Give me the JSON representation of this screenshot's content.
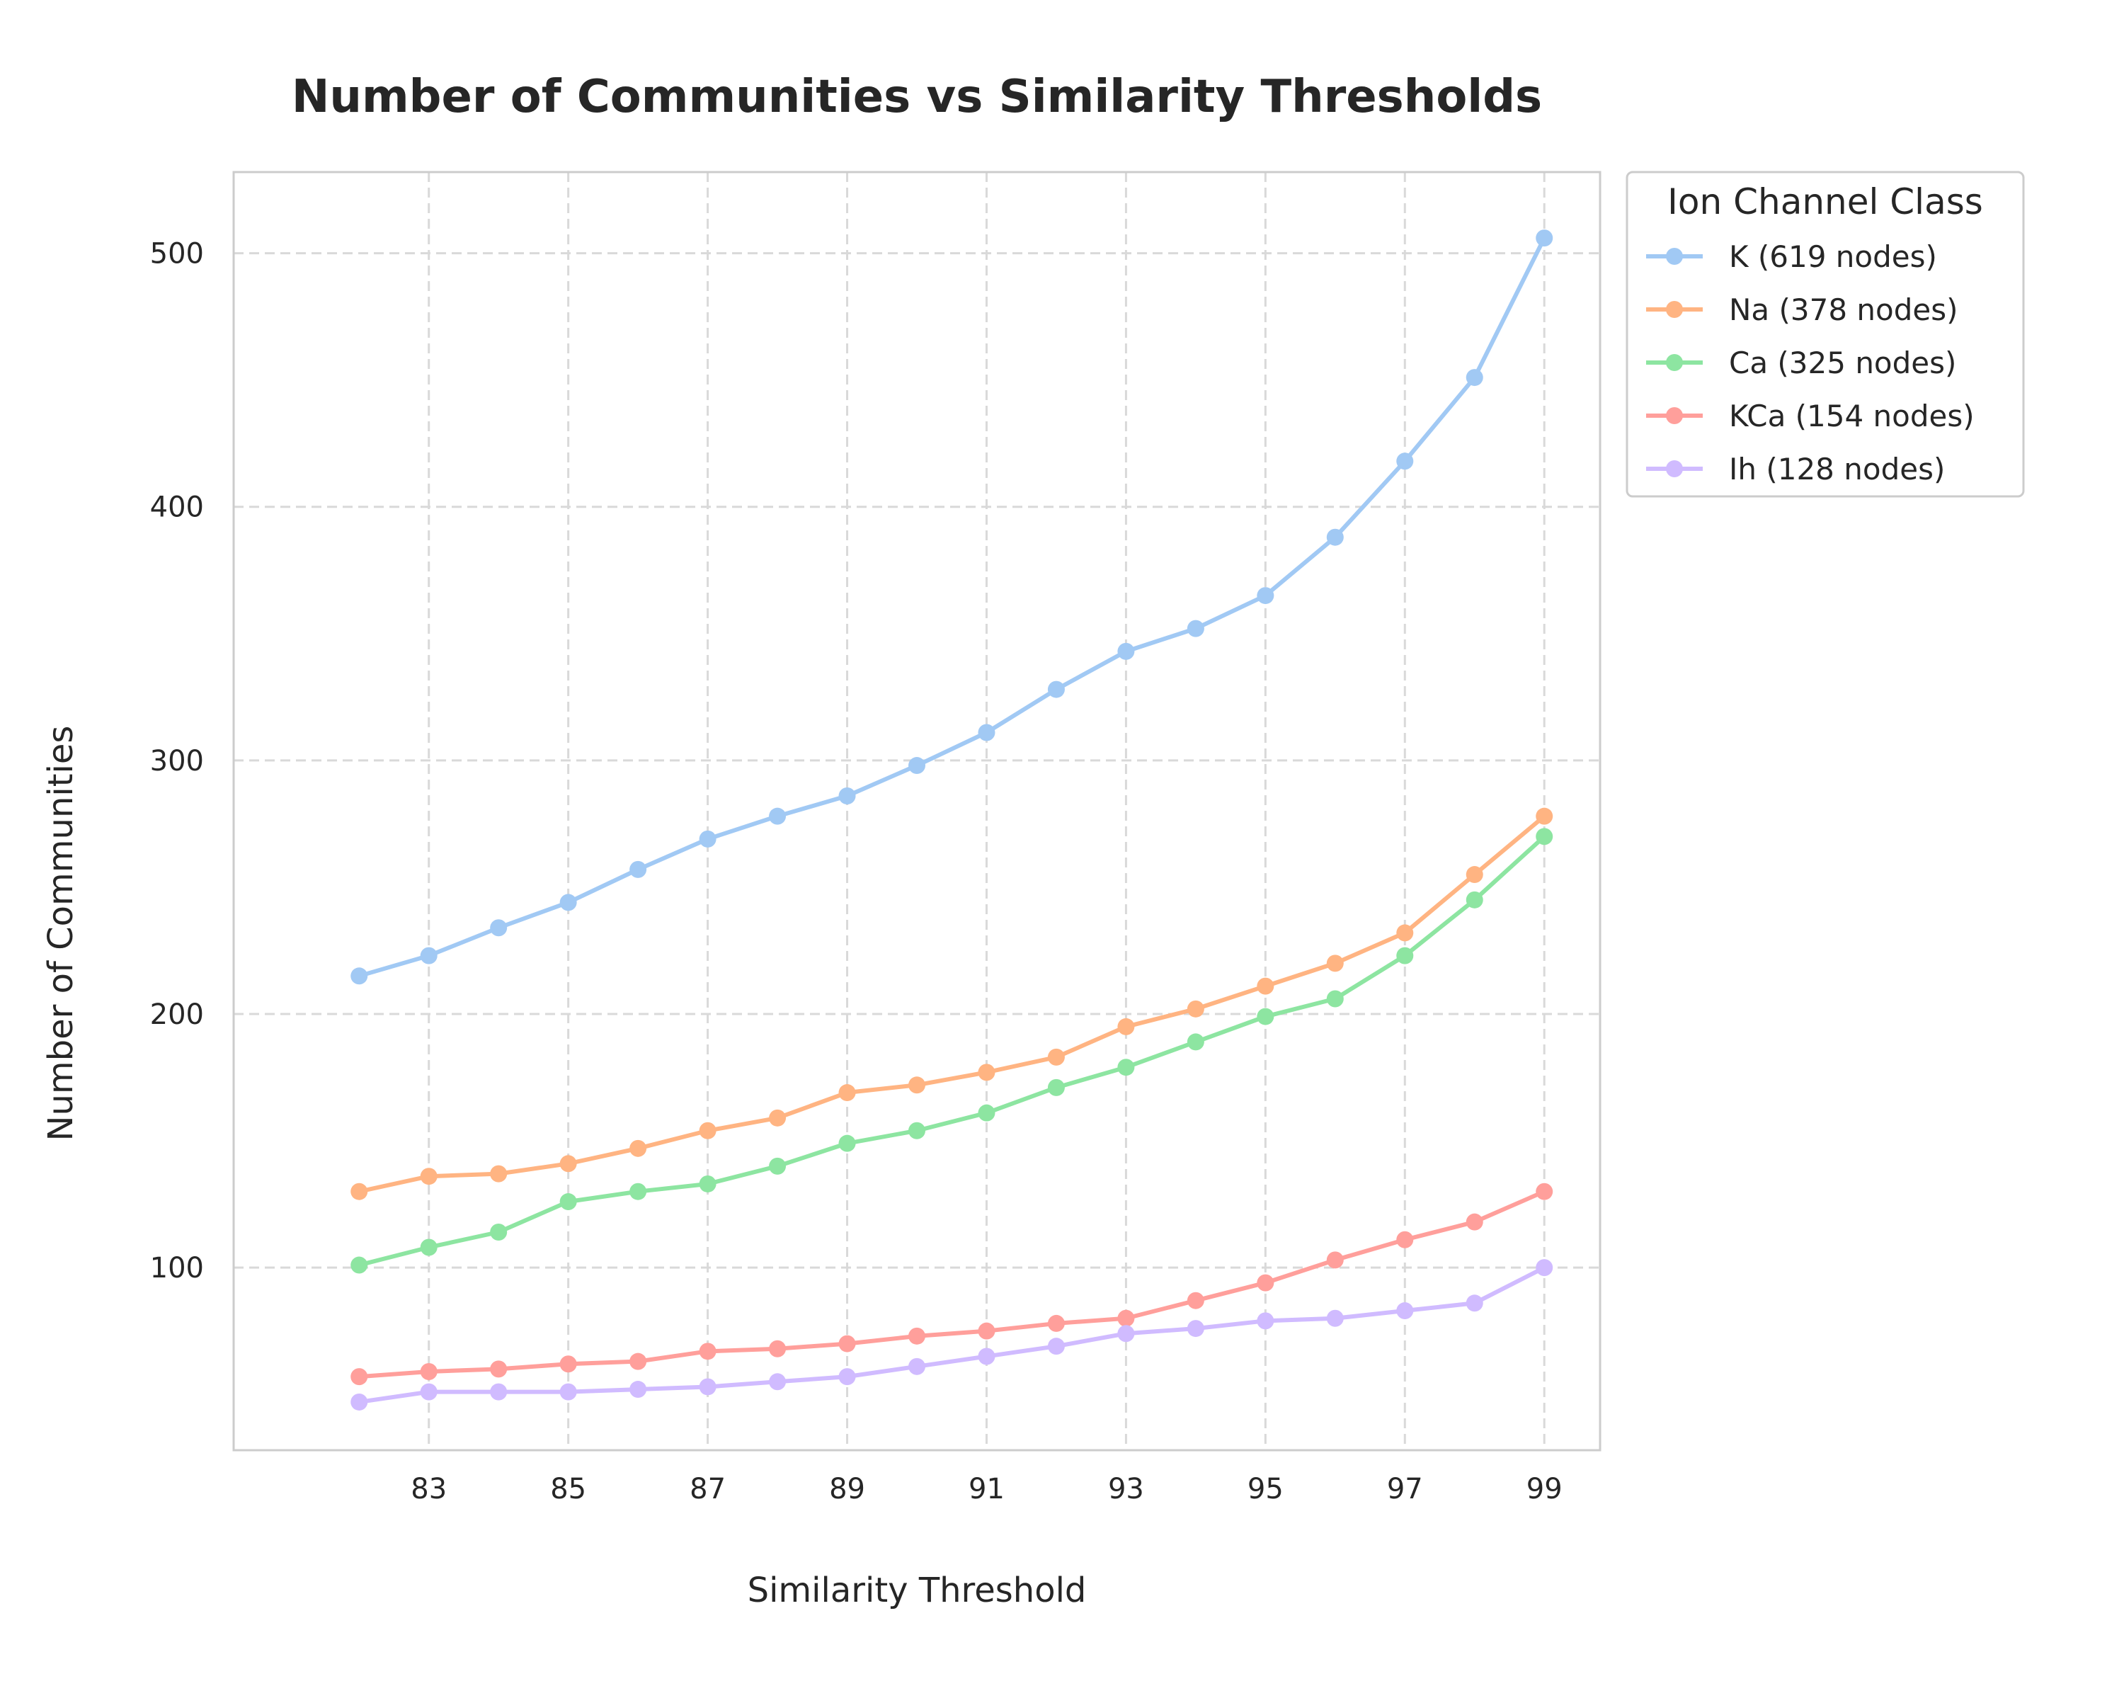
{
  "chart_data": {
    "type": "line",
    "title": "Number of Communities vs Similarity Thresholds",
    "xlabel": "Similarity Threshold",
    "ylabel": "Number of Communities",
    "x": [
      82,
      83,
      84,
      85,
      86,
      87,
      88,
      89,
      90,
      91,
      92,
      93,
      94,
      95,
      96,
      97,
      98,
      99
    ],
    "xticks": [
      83,
      85,
      87,
      89,
      91,
      93,
      95,
      97,
      99
    ],
    "yticks": [
      100,
      200,
      300,
      400,
      500
    ],
    "xlim": [
      80.2,
      99.8
    ],
    "ylim": [
      28,
      532
    ],
    "grid": true,
    "legend": {
      "title": "Ion Channel Class",
      "placement": "outside-top-right"
    },
    "series": [
      {
        "name": "K (619 nodes)",
        "color": "#a1c9f4",
        "values": [
          215,
          223,
          234,
          244,
          257,
          269,
          278,
          286,
          298,
          311,
          328,
          343,
          352,
          365,
          388,
          418,
          451,
          506
        ]
      },
      {
        "name": "Na (378 nodes)",
        "color": "#ffb482",
        "values": [
          130,
          136,
          137,
          141,
          147,
          154,
          159,
          169,
          172,
          177,
          183,
          195,
          202,
          211,
          220,
          232,
          255,
          278
        ]
      },
      {
        "name": "Ca (325 nodes)",
        "color": "#8de5a1",
        "values": [
          101,
          108,
          114,
          126,
          130,
          133,
          140,
          149,
          154,
          161,
          171,
          179,
          189,
          199,
          206,
          223,
          245,
          270
        ]
      },
      {
        "name": "KCa (154 nodes)",
        "color": "#ff9f9b",
        "values": [
          57,
          59,
          60,
          62,
          63,
          67,
          68,
          70,
          73,
          75,
          78,
          80,
          87,
          94,
          103,
          111,
          118,
          130
        ]
      },
      {
        "name": "Ih (128 nodes)",
        "color": "#d0bbff",
        "values": [
          47,
          51,
          51,
          51,
          52,
          53,
          55,
          57,
          61,
          65,
          69,
          74,
          76,
          79,
          80,
          83,
          86,
          100
        ]
      }
    ]
  }
}
